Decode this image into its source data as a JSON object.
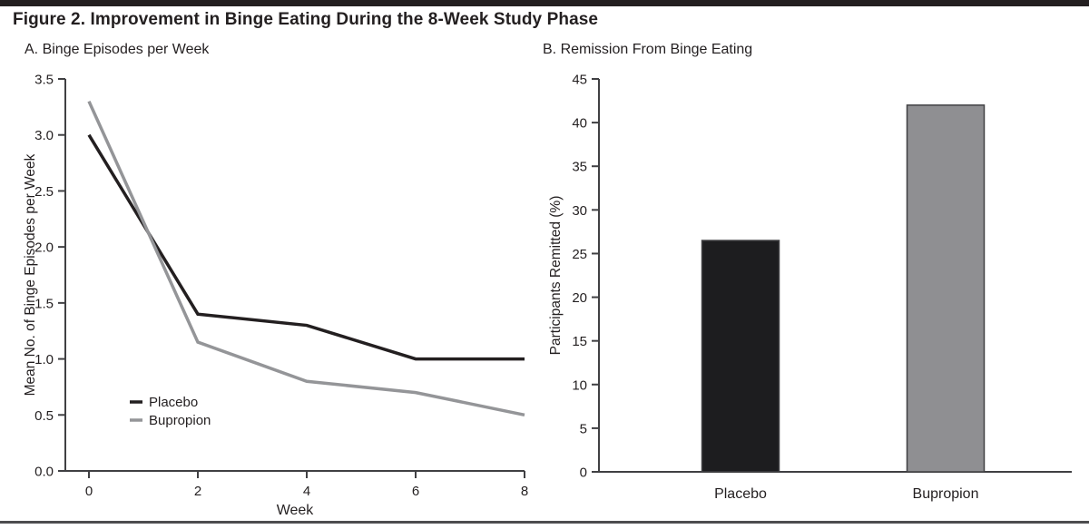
{
  "figure": {
    "title": "Figure 2. Improvement in Binge Eating During the 8-Week Study Phase"
  },
  "chart_data": [
    {
      "type": "line",
      "panel": "A",
      "title": "A. Binge Episodes per Week",
      "xlabel": "Week",
      "ylabel": "Mean No. of Binge Episodes per Week",
      "x": [
        0,
        2,
        4,
        6,
        8
      ],
      "xtick_labels": [
        "0",
        "2",
        "4",
        "6",
        "8"
      ],
      "xlim": [
        0,
        8
      ],
      "ylim": [
        0,
        3.5
      ],
      "ytick_labels": [
        "0.0",
        "0.5",
        "1.0",
        "1.5",
        "2.0",
        "2.5",
        "3.0",
        "3.5"
      ],
      "grid": false,
      "legend_position": "inside-lower-left",
      "series": [
        {
          "name": "Placebo",
          "color": "#231f20",
          "values": [
            3.0,
            1.4,
            1.3,
            1.0,
            1.0
          ]
        },
        {
          "name": "Bupropion",
          "color": "#949598",
          "values": [
            3.3,
            1.15,
            0.8,
            0.7,
            0.5
          ]
        }
      ]
    },
    {
      "type": "bar",
      "panel": "B",
      "title": "B. Remission From Binge Eating",
      "xlabel": "",
      "ylabel": "Participants Remitted (%)",
      "categories": [
        "Placebo",
        "Bupropion"
      ],
      "values": [
        26.5,
        42
      ],
      "bar_colors": [
        "#1d1d1f",
        "#8f8f92"
      ],
      "bar_border_color": "#404043",
      "ylim": [
        0,
        45
      ],
      "ytick_labels": [
        "0",
        "5",
        "10",
        "15",
        "20",
        "25",
        "30",
        "35",
        "40",
        "45"
      ],
      "grid": false
    }
  ],
  "style": {
    "axis_color": "#404043",
    "text_color": "#231f20",
    "top_rule_color": "#231f20",
    "bottom_rule_color": "#4d4d4f",
    "background": "#ffffff"
  }
}
